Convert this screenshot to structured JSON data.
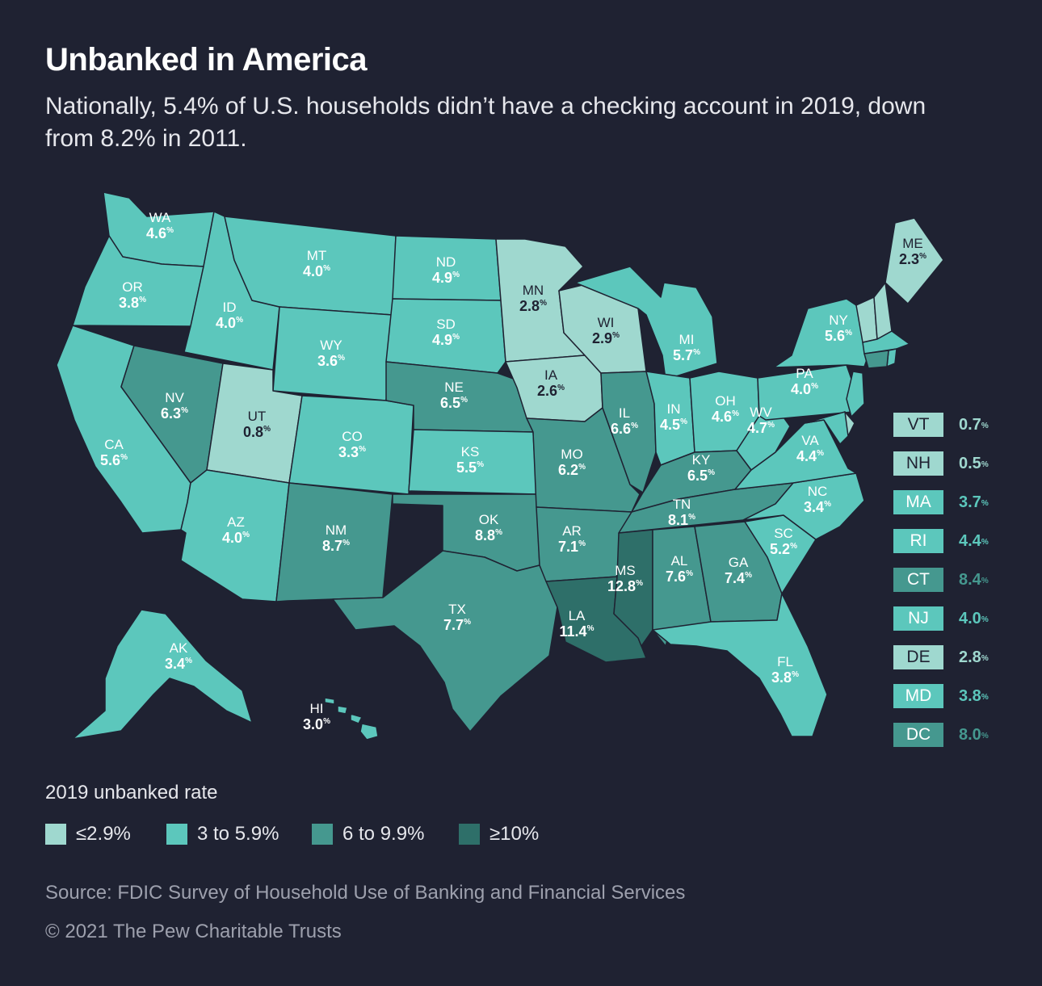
{
  "title": "Unbanked in America",
  "subtitle": "Nationally, 5.4% of U.S. households didn’t have a checking account in 2019, down from 8.2% in 2011.",
  "colors": {
    "background": "#1f2232",
    "tier1": "#9fd8cf",
    "tier2": "#5cc7bc",
    "tier3": "#45988f",
    "tier4": "#2e6f69"
  },
  "states": [
    {
      "code": "WA",
      "value": "4.6"
    },
    {
      "code": "OR",
      "value": "3.8"
    },
    {
      "code": "CA",
      "value": "5.6"
    },
    {
      "code": "NV",
      "value": "6.3"
    },
    {
      "code": "ID",
      "value": "4.0"
    },
    {
      "code": "MT",
      "value": "4.0"
    },
    {
      "code": "WY",
      "value": "3.6"
    },
    {
      "code": "UT",
      "value": "0.8"
    },
    {
      "code": "AZ",
      "value": "4.0"
    },
    {
      "code": "CO",
      "value": "3.3"
    },
    {
      "code": "NM",
      "value": "8.7"
    },
    {
      "code": "ND",
      "value": "4.9"
    },
    {
      "code": "SD",
      "value": "4.9"
    },
    {
      "code": "NE",
      "value": "6.5"
    },
    {
      "code": "KS",
      "value": "5.5"
    },
    {
      "code": "OK",
      "value": "8.8"
    },
    {
      "code": "TX",
      "value": "7.7"
    },
    {
      "code": "MN",
      "value": "2.8"
    },
    {
      "code": "IA",
      "value": "2.6"
    },
    {
      "code": "MO",
      "value": "6.2"
    },
    {
      "code": "AR",
      "value": "7.1"
    },
    {
      "code": "LA",
      "value": "11.4"
    },
    {
      "code": "WI",
      "value": "2.9"
    },
    {
      "code": "IL",
      "value": "6.6"
    },
    {
      "code": "MI",
      "value": "5.7"
    },
    {
      "code": "IN",
      "value": "4.5"
    },
    {
      "code": "OH",
      "value": "4.6"
    },
    {
      "code": "KY",
      "value": "6.5"
    },
    {
      "code": "TN",
      "value": "8.1"
    },
    {
      "code": "MS",
      "value": "12.8"
    },
    {
      "code": "AL",
      "value": "7.6"
    },
    {
      "code": "GA",
      "value": "7.4"
    },
    {
      "code": "FL",
      "value": "3.8"
    },
    {
      "code": "SC",
      "value": "5.2"
    },
    {
      "code": "NC",
      "value": "3.4"
    },
    {
      "code": "VA",
      "value": "4.4"
    },
    {
      "code": "WV",
      "value": "4.7"
    },
    {
      "code": "PA",
      "value": "4.0"
    },
    {
      "code": "NY",
      "value": "5.6"
    },
    {
      "code": "ME",
      "value": "2.3"
    },
    {
      "code": "AK",
      "value": "3.4"
    },
    {
      "code": "HI",
      "value": "3.0"
    }
  ],
  "small_states": [
    {
      "code": "VT",
      "value": "0.7"
    },
    {
      "code": "NH",
      "value": "0.5"
    },
    {
      "code": "MA",
      "value": "3.7"
    },
    {
      "code": "RI",
      "value": "4.4"
    },
    {
      "code": "CT",
      "value": "8.4"
    },
    {
      "code": "NJ",
      "value": "4.0"
    },
    {
      "code": "DE",
      "value": "2.8"
    },
    {
      "code": "MD",
      "value": "3.8"
    },
    {
      "code": "DC",
      "value": "8.0"
    }
  ],
  "percent_sign": "%",
  "legend": {
    "title": "2019 unbanked rate",
    "items": [
      {
        "label": "≤2.9%",
        "color": "#9fd8cf"
      },
      {
        "label": "3 to 5.9%",
        "color": "#5cc7bc"
      },
      {
        "label": "6 to 9.9%",
        "color": "#45988f"
      },
      {
        "label": "≥10%",
        "color": "#2e6f69"
      }
    ]
  },
  "source": "Source: FDIC Survey of Household Use of Banking and Financial Services",
  "copyright": "© 2021 The Pew Charitable Trusts"
}
